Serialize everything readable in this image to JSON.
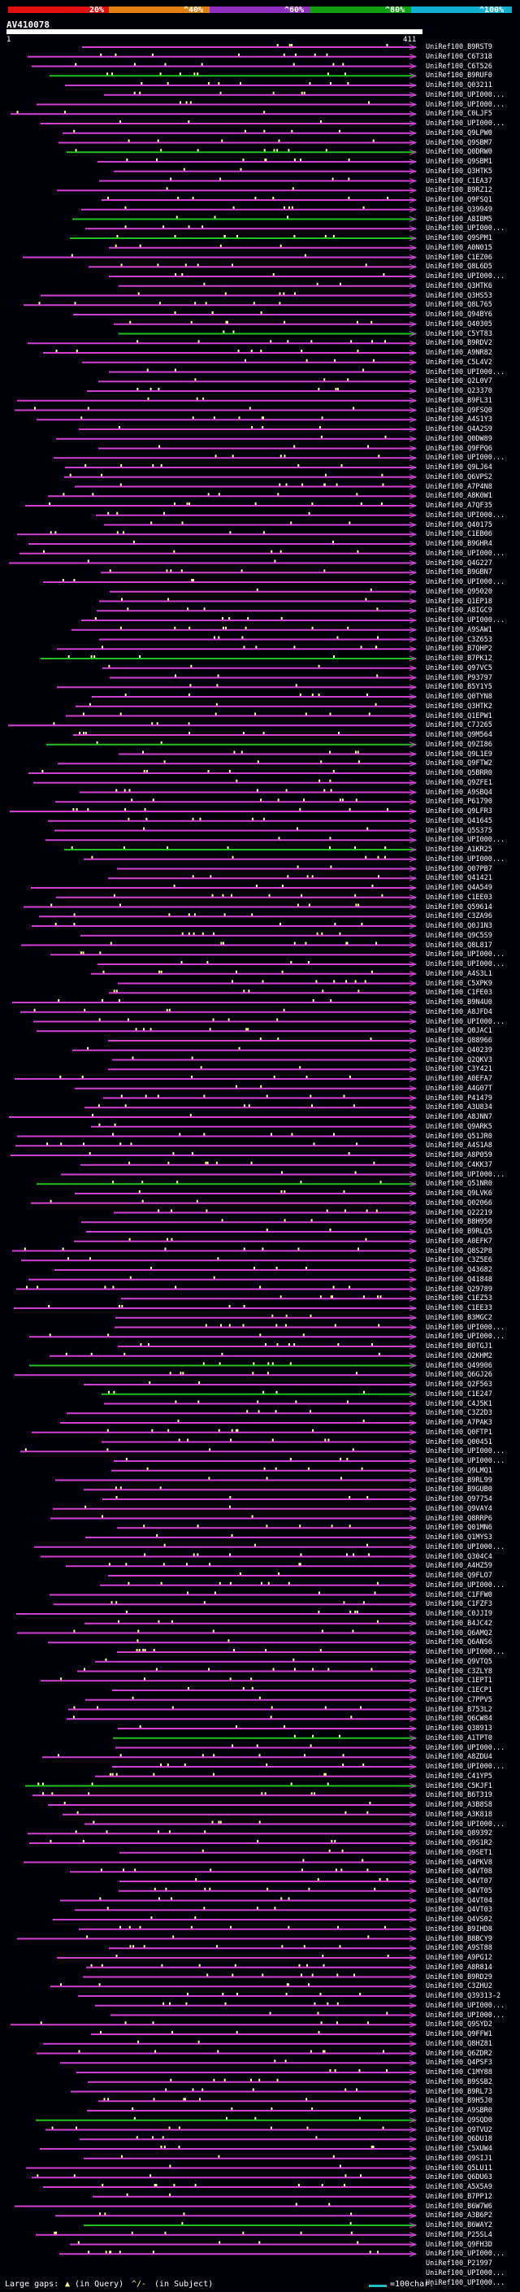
{
  "scale": {
    "labels": [
      "20%",
      "^40%",
      "^60%",
      "^80%",
      "^100%"
    ],
    "colors": [
      "#e01010",
      "#e08010",
      "#9030c0",
      "#10a010",
      "#10b0d0"
    ]
  },
  "query": {
    "title": "AV410078",
    "start": "1",
    "end": "411"
  },
  "hit_colors": {
    "default": "#d040d0",
    "highlight": "#20c020",
    "insert": "#ffff80"
  },
  "hits": [
    "UniRef100_B9RST9",
    "UniRef100_C6T318",
    "UniRef100_C6T526",
    "UniRef100_B9RUF0",
    "UniRef100_Q03211",
    "UniRef100_UPI000...",
    "UniRef100_UPI000...",
    "UniRef100_C0LJF5",
    "UniRef100_UPI000...",
    "UniRef100_Q9LPW0",
    "UniRef100_Q9SBM7",
    "UniRef100_Q0DRW0",
    "UniRef100_Q9SBM1",
    "UniRef100_Q3HTK5",
    "UniRef100_C1EA37",
    "UniRef100_B9RZ12",
    "UniRef100_Q9FSQ1",
    "UniRef100_Q39949",
    "UniRef100_A8IBM5",
    "UniRef100_UPI000...",
    "UniRef100_Q9SPM1",
    "UniRef100_A0N015",
    "UniRef100_C1EZ06",
    "UniRef100_Q8L6D5",
    "UniRef100_UPI000...",
    "UniRef100_Q3HTK6",
    "UniRef100_Q3HS53",
    "UniRef100_Q8L765",
    "UniRef100_Q94BY6",
    "UniRef100_Q40305",
    "UniRef100_C5YT83",
    "UniRef100_B9RDV2",
    "UniRef100_A9NR82",
    "UniRef100_C5L4V2",
    "UniRef100_UPI000...",
    "UniRef100_Q2L0V7",
    "UniRef100_Q23370",
    "UniRef100_B9FL31",
    "UniRef100_Q9FSQ0",
    "UniRef100_A4S1Y3",
    "UniRef100_Q4A2S9",
    "UniRef100_Q0DW89",
    "UniRef100_Q9FPQ6",
    "UniRef100_UPI000...",
    "UniRef100_Q9LJ64",
    "UniRef100_Q6VPS2",
    "UniRef100_A7P4N8",
    "UniRef100_A8K0W1",
    "UniRef100_A7QF35",
    "UniRef100_UPI000...",
    "UniRef100_Q40175",
    "UniRef100_C1EB06",
    "UniRef100_B9GHR4",
    "UniRef100_UPI000...",
    "UniRef100_Q4G227",
    "UniRef100_B9GBN7",
    "UniRef100_UPI000...",
    "UniRef100_Q95020",
    "UniRef100_Q1EP18",
    "UniRef100_A8IGC9",
    "UniRef100_UPI000...",
    "UniRef100_A9SAW1",
    "UniRef100_C3Z653",
    "UniRef100_B7QHP2",
    "UniRef100_B7PK12",
    "UniRef100_Q97VC5",
    "UniRef100_P93797",
    "UniRef100_B5Y1Y5",
    "UniRef100_Q0TYN8",
    "UniRef100_Q3HTK2",
    "UniRef100_Q1EPW1",
    "UniRef100_C7J265",
    "UniRef100_Q9M564",
    "UniRef100_Q9ZI86",
    "UniRef100_Q9L1E9",
    "UniRef100_Q9FTW2",
    "UniRef100_Q5BRR0",
    "UniRef100_Q9ZFE1",
    "UniRef100_A9SBQ4",
    "UniRef100_P61790",
    "UniRef100_Q9LFR3",
    "UniRef100_Q41645",
    "UniRef100_Q5S375",
    "UniRef100_UPI000...",
    "UniRef100_A1KR25",
    "UniRef100_UPI000...",
    "UniRef100_Q07PB7",
    "UniRef100_Q41421",
    "UniRef100_Q4A549",
    "UniRef100_C1EE03",
    "UniRef100_Q59614",
    "UniRef100_C3ZA96",
    "UniRef100_Q0J1N3",
    "UniRef100_Q9C5S9",
    "UniRef100_Q8L817",
    "UniRef100_UPI000...",
    "UniRef100_UPI000...",
    "UniRef100_A4S3L1",
    "UniRef100_C5XPK9",
    "UniRef100_C1FE03",
    "UniRef100_B9N4U0",
    "UniRef100_A8JFD4",
    "UniRef100_UPI000...",
    "UniRef100_Q0JAC1",
    "UniRef100_Q88966",
    "UniRef100_Q40239",
    "UniRef100_Q2QKV3",
    "UniRef100_C3Y421",
    "UniRef100_A0EFA7",
    "UniRef100_A4G07T",
    "UniRef100_P41479",
    "UniRef100_A3U834",
    "UniRef100_A8JNN7",
    "UniRef100_Q9ARK5",
    "UniRef100_Q51JR0",
    "UniRef100_A4S1A8",
    "UniRef100_A8P059",
    "UniRef100_C4KK37",
    "UniRef100_UPI000...",
    "UniRef100_Q51NR0",
    "UniRef100_Q9LVK6",
    "UniRef100_Q02066",
    "UniRef100_Q22219",
    "UniRef100_B8H950",
    "UniRef100_B9RLQ5",
    "UniRef100_A0EFK7",
    "UniRef100_Q8S2P8",
    "UniRef100_C3Z5E6",
    "UniRef100_Q43682",
    "UniRef100_Q41848",
    "UniRef100_Q29789",
    "UniRef100_C1EZ53",
    "UniRef100_C1EE33",
    "UniRef100_B3MGC2",
    "UniRef100_UPI000...",
    "UniRef100_UPI000...",
    "UniRef100_B0TGJ1",
    "UniRef100_Q2KHM2",
    "UniRef100_Q49906",
    "UniRef100_Q6GJ26",
    "UniRef100_Q2F563",
    "UniRef100_C1E247",
    "UniRef100_C4J5K1",
    "UniRef100_C3Z2D3",
    "UniRef100_A7PAK3",
    "UniRef100_Q0FTP1",
    "UniRef100_Q00451",
    "UniRef100_UPI000...",
    "UniRef100_UPI000...",
    "UniRef100_Q9LMQ1",
    "UniRef100_B9RL99",
    "UniRef100_B9GUB0",
    "UniRef100_Q97754",
    "UniRef100_Q9VAY4",
    "UniRef100_Q8RRP6",
    "UniRef100_Q01MN6",
    "UniRef100_Q1MYS3",
    "UniRef100_UPI000...",
    "UniRef100_Q304C4",
    "UniRef100_A4HZ59",
    "UniRef100_Q9FLO7",
    "UniRef100_UPI000...",
    "UniRef100_C1FFW0",
    "UniRef100_C1FZF3",
    "UniRef100_C0JJI9",
    "UniRef100_B4JC42",
    "UniRef100_Q6AMQ2",
    "UniRef100_Q6ANS6",
    "UniRef100_UPI000...",
    "UniRef100_Q9VTQ5",
    "UniRef100_C3ZLY8",
    "UniRef100_C1EPT1",
    "UniRef100_C1ECP1",
    "UniRef100_C7PPV5",
    "UniRef100_B753L2",
    "UniRef100_Q6CW84",
    "UniRef100_Q38913",
    "UniRef100_A1TPT0",
    "UniRef100_UPI000...",
    "UniRef100_A8ZDU4",
    "UniRef100_UPI000...",
    "UniRef100_C41YP5",
    "UniRef100_C5KJF1",
    "UniRef100_B6T319",
    "UniRef100_A3B8S8",
    "UniRef100_A3K818",
    "UniRef100_UPI000...",
    "UniRef100_Q89392",
    "UniRef100_Q9S1R2",
    "UniRef100_Q9SET1",
    "UniRef100_Q4PKV8",
    "UniRef100_Q4VT08",
    "UniRef100_Q4VT07",
    "UniRef100_Q4VT05",
    "UniRef100_Q4VT04",
    "UniRef100_Q4VT03",
    "UniRef100_Q4VS02",
    "UniRef100_B9IHD8",
    "UniRef100_B8BCY9",
    "UniRef100_A9ST88",
    "UniRef100_A9PG12",
    "UniRef100_A8R814",
    "UniRef100_B9RD29",
    "UniRef100_C3ZHU2",
    "UniRef100_Q39313-2",
    "UniRef100_UPI000...",
    "UniRef100_UPI000...",
    "UniRef100_Q9SYD2",
    "UniRef100_Q9FFW1",
    "UniRef100_Q8HZ81",
    "UniRef100_Q6ZDR2",
    "UniRef100_Q4PSF3",
    "UniRef100_C1MY88",
    "UniRef100_B9SSB2",
    "UniRef100_B9RL73",
    "UniRef100_B9H5J0",
    "UniRef100_A9SBR0",
    "UniRef100_Q9SQD0",
    "UniRef100_Q9TVU2",
    "UniRef100_Q6DU18",
    "UniRef100_C5XUW4",
    "UniRef100_Q9SIJ1",
    "UniRef100_Q5LU11",
    "UniRef100_Q6DU63",
    "UniRef100_A5X5A9",
    "UniRef100_B7PP12",
    "UniRef100_B6W7W6",
    "UniRef100_A3B6P2",
    "UniRef100_B6WAY2",
    "UniRef100_P25SL4",
    "UniRef100_Q9FH3D",
    "UniRef100_UPI000...",
    "UniRef100_P21997",
    "UniRef100_UPI000...",
    "UniRef100_UPI000..."
  ],
  "footer": {
    "large_gaps": "Large gaps:",
    "in_query": "(in Query)",
    "in_subject": "(in Subject)",
    "scale_note": "=100char."
  }
}
